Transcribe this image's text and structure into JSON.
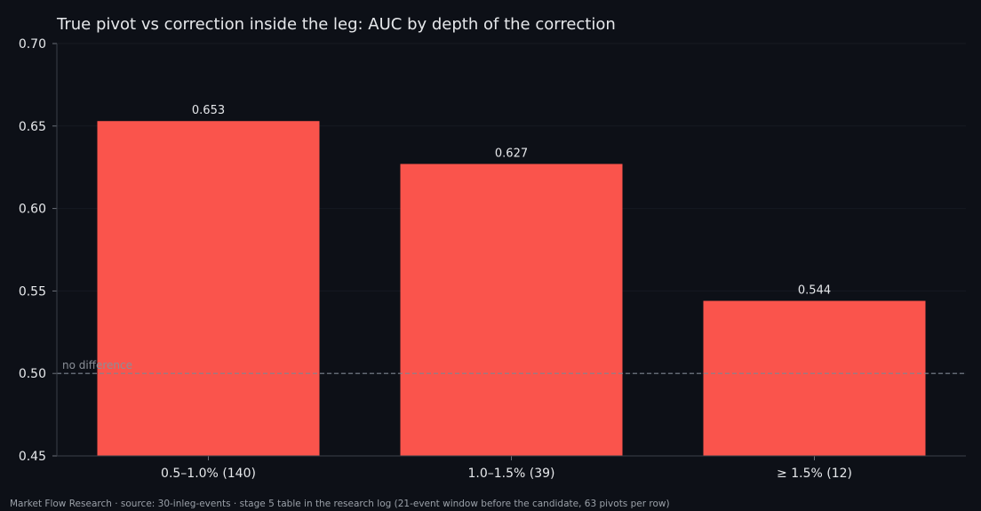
{
  "chart_data": {
    "type": "bar",
    "title": "True pivot vs correction inside the leg: AUC by depth of the correction",
    "categories": [
      "0.5–1.0% (140)",
      "1.0–1.5% (39)",
      "≥ 1.5% (12)"
    ],
    "values": [
      0.653,
      0.627,
      0.544
    ],
    "data_labels": [
      "0.653",
      "0.627",
      "0.544"
    ],
    "ylim": [
      0.45,
      0.7
    ],
    "yticks": [
      0.45,
      0.5,
      0.55,
      0.6,
      0.65,
      0.7
    ],
    "ytick_labels": [
      "0.45",
      "0.50",
      "0.55",
      "0.60",
      "0.65",
      "0.70"
    ],
    "xlabel": "",
    "ylabel": "",
    "grid": true,
    "reference_line": {
      "value": 0.5,
      "label": "no difference",
      "style": "dashed"
    },
    "colors": {
      "bar": "#fa544c",
      "background": "#0d1017",
      "text": "#e6e8eb",
      "grid": "#161a22",
      "reference": "#7e8590"
    }
  },
  "footer": {
    "text": "Market Flow Research · source: 30-inleg-events · stage 5 table in the research log (21-event window before the candidate, 63 pivots per row)"
  }
}
